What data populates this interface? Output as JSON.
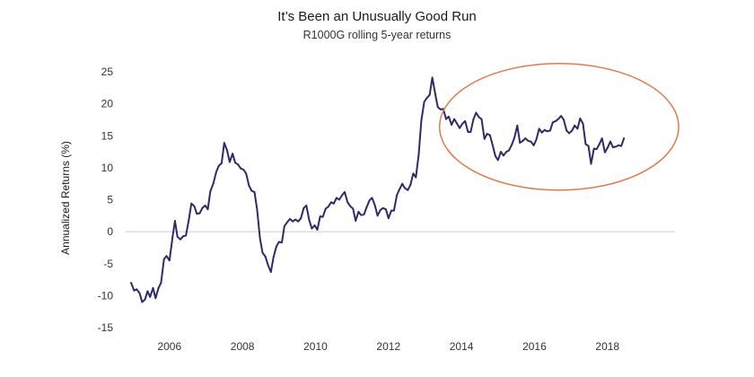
{
  "chart_data": {
    "type": "line",
    "title": "It’s Been an Unusually Good Run",
    "subtitle": "R1000G rolling 5-year returns",
    "xlabel": "",
    "ylabel": "Annualized Returns (%)",
    "xlim": [
      2004.8,
      2019.85
    ],
    "ylim": [
      -15,
      25
    ],
    "x_ticks": [
      {
        "value": 2006,
        "label": "2006"
      },
      {
        "value": 2008,
        "label": "2008"
      },
      {
        "value": 2010,
        "label": "2010"
      },
      {
        "value": 2012,
        "label": "2012"
      },
      {
        "value": 2014,
        "label": "2014"
      },
      {
        "value": 2016,
        "label": "2016"
      },
      {
        "value": 2018,
        "label": "2018"
      }
    ],
    "y_ticks": [
      {
        "value": 25,
        "label": "25"
      },
      {
        "value": 20,
        "label": "20"
      },
      {
        "value": 15,
        "label": "15"
      },
      {
        "value": 10,
        "label": "10"
      },
      {
        "value": 5,
        "label": "5"
      },
      {
        "value": 0,
        "label": "0"
      },
      {
        "value": -5,
        "label": "-5"
      },
      {
        "value": -10,
        "label": "-10"
      },
      {
        "value": -15,
        "label": "-15"
      }
    ],
    "grid": false,
    "zero_line": true,
    "line_color": "#2d2b6b",
    "zero_line_color": "#cccccc",
    "highlight_color": "#e07a4c",
    "highlight": {
      "x_from": 2013.4,
      "x_to": 2019.95,
      "y_from": 6.5,
      "y_to": 26.3
    },
    "series": [
      {
        "points": [
          [
            2004.95,
            -8.0
          ],
          [
            2005.03,
            -9.2
          ],
          [
            2005.1,
            -9.0
          ],
          [
            2005.18,
            -9.6
          ],
          [
            2005.25,
            -11.0
          ],
          [
            2005.33,
            -10.6
          ],
          [
            2005.4,
            -9.3
          ],
          [
            2005.47,
            -10.2
          ],
          [
            2005.55,
            -8.8
          ],
          [
            2005.62,
            -10.4
          ],
          [
            2005.7,
            -8.8
          ],
          [
            2005.77,
            -8.0
          ],
          [
            2005.85,
            -4.3
          ],
          [
            2005.92,
            -3.8
          ],
          [
            2006.0,
            -4.5
          ],
          [
            2006.08,
            -1.0
          ],
          [
            2006.15,
            1.7
          ],
          [
            2006.22,
            -0.8
          ],
          [
            2006.3,
            -1.2
          ],
          [
            2006.38,
            -0.7
          ],
          [
            2006.45,
            -0.6
          ],
          [
            2006.53,
            1.8
          ],
          [
            2006.6,
            4.4
          ],
          [
            2006.68,
            4.0
          ],
          [
            2006.75,
            2.8
          ],
          [
            2006.83,
            2.9
          ],
          [
            2006.9,
            3.7
          ],
          [
            2006.98,
            4.1
          ],
          [
            2007.05,
            3.5
          ],
          [
            2007.12,
            6.3
          ],
          [
            2007.2,
            7.5
          ],
          [
            2007.28,
            9.3
          ],
          [
            2007.35,
            10.3
          ],
          [
            2007.43,
            10.7
          ],
          [
            2007.5,
            13.9
          ],
          [
            2007.58,
            12.7
          ],
          [
            2007.65,
            10.9
          ],
          [
            2007.73,
            12.2
          ],
          [
            2007.8,
            10.8
          ],
          [
            2007.88,
            10.5
          ],
          [
            2007.95,
            9.9
          ],
          [
            2008.03,
            9.7
          ],
          [
            2008.1,
            9.1
          ],
          [
            2008.18,
            7.2
          ],
          [
            2008.25,
            6.4
          ],
          [
            2008.33,
            6.2
          ],
          [
            2008.4,
            3.5
          ],
          [
            2008.48,
            -1.0
          ],
          [
            2008.55,
            -3.3
          ],
          [
            2008.63,
            -3.9
          ],
          [
            2008.7,
            -5.2
          ],
          [
            2008.78,
            -6.3
          ],
          [
            2008.85,
            -4.0
          ],
          [
            2008.93,
            -2.3
          ],
          [
            2009.0,
            -1.6
          ],
          [
            2009.08,
            -1.7
          ],
          [
            2009.15,
            0.9
          ],
          [
            2009.23,
            1.5
          ],
          [
            2009.3,
            2.0
          ],
          [
            2009.38,
            1.6
          ],
          [
            2009.45,
            1.9
          ],
          [
            2009.53,
            1.6
          ],
          [
            2009.6,
            2.1
          ],
          [
            2009.68,
            3.7
          ],
          [
            2009.75,
            4.1
          ],
          [
            2009.83,
            1.8
          ],
          [
            2009.9,
            0.5
          ],
          [
            2009.98,
            1.0
          ],
          [
            2010.05,
            0.3
          ],
          [
            2010.13,
            2.4
          ],
          [
            2010.2,
            2.3
          ],
          [
            2010.28,
            3.6
          ],
          [
            2010.35,
            3.9
          ],
          [
            2010.43,
            4.6
          ],
          [
            2010.5,
            4.4
          ],
          [
            2010.58,
            5.3
          ],
          [
            2010.65,
            5.0
          ],
          [
            2010.73,
            5.7
          ],
          [
            2010.8,
            6.2
          ],
          [
            2010.88,
            4.6
          ],
          [
            2010.95,
            4.0
          ],
          [
            2011.03,
            3.6
          ],
          [
            2011.1,
            1.7
          ],
          [
            2011.18,
            3.1
          ],
          [
            2011.25,
            2.6
          ],
          [
            2011.33,
            2.7
          ],
          [
            2011.4,
            3.8
          ],
          [
            2011.48,
            4.9
          ],
          [
            2011.55,
            5.3
          ],
          [
            2011.63,
            4.1
          ],
          [
            2011.7,
            2.5
          ],
          [
            2011.78,
            3.4
          ],
          [
            2011.85,
            3.7
          ],
          [
            2011.93,
            3.5
          ],
          [
            2012.0,
            2.1
          ],
          [
            2012.08,
            3.3
          ],
          [
            2012.15,
            3.3
          ],
          [
            2012.23,
            5.7
          ],
          [
            2012.3,
            6.6
          ],
          [
            2012.38,
            7.5
          ],
          [
            2012.45,
            6.8
          ],
          [
            2012.53,
            6.5
          ],
          [
            2012.6,
            7.3
          ],
          [
            2012.68,
            9.1
          ],
          [
            2012.75,
            8.5
          ],
          [
            2012.83,
            12.1
          ],
          [
            2012.9,
            17.4
          ],
          [
            2012.98,
            20.3
          ],
          [
            2013.05,
            20.9
          ],
          [
            2013.13,
            21.4
          ],
          [
            2013.2,
            24.1
          ],
          [
            2013.28,
            21.6
          ],
          [
            2013.35,
            19.5
          ],
          [
            2013.43,
            19.1
          ],
          [
            2013.5,
            19.2
          ],
          [
            2013.58,
            17.6
          ],
          [
            2013.65,
            18.0
          ],
          [
            2013.73,
            16.7
          ],
          [
            2013.8,
            17.6
          ],
          [
            2013.88,
            16.9
          ],
          [
            2013.95,
            16.2
          ],
          [
            2014.03,
            16.9
          ],
          [
            2014.1,
            17.3
          ],
          [
            2014.18,
            15.6
          ],
          [
            2014.25,
            15.6
          ],
          [
            2014.33,
            17.6
          ],
          [
            2014.4,
            18.6
          ],
          [
            2014.48,
            17.9
          ],
          [
            2014.55,
            17.6
          ],
          [
            2014.63,
            14.5
          ],
          [
            2014.7,
            15.3
          ],
          [
            2014.78,
            15.1
          ],
          [
            2014.85,
            13.6
          ],
          [
            2014.93,
            11.8
          ],
          [
            2015.0,
            11.2
          ],
          [
            2015.08,
            12.5
          ],
          [
            2015.15,
            11.9
          ],
          [
            2015.23,
            12.5
          ],
          [
            2015.3,
            12.7
          ],
          [
            2015.38,
            13.6
          ],
          [
            2015.45,
            14.7
          ],
          [
            2015.53,
            16.6
          ],
          [
            2015.6,
            13.9
          ],
          [
            2015.68,
            14.2
          ],
          [
            2015.75,
            14.6
          ],
          [
            2015.83,
            14.2
          ],
          [
            2015.9,
            14.1
          ],
          [
            2015.98,
            13.5
          ],
          [
            2016.05,
            14.4
          ],
          [
            2016.13,
            16.1
          ],
          [
            2016.2,
            15.5
          ],
          [
            2016.28,
            15.9
          ],
          [
            2016.35,
            15.7
          ],
          [
            2016.43,
            15.8
          ],
          [
            2016.5,
            17.1
          ],
          [
            2016.58,
            17.3
          ],
          [
            2016.65,
            17.6
          ],
          [
            2016.73,
            18.1
          ],
          [
            2016.8,
            17.5
          ],
          [
            2016.88,
            15.8
          ],
          [
            2016.95,
            15.4
          ],
          [
            2017.03,
            15.8
          ],
          [
            2017.1,
            16.6
          ],
          [
            2017.18,
            16.1
          ],
          [
            2017.25,
            17.7
          ],
          [
            2017.33,
            16.9
          ],
          [
            2017.4,
            13.7
          ],
          [
            2017.48,
            13.4
          ],
          [
            2017.55,
            10.6
          ],
          [
            2017.63,
            13.0
          ],
          [
            2017.7,
            12.9
          ],
          [
            2017.78,
            13.7
          ],
          [
            2017.85,
            14.6
          ],
          [
            2017.93,
            12.4
          ],
          [
            2018.0,
            13.1
          ],
          [
            2018.08,
            14.1
          ],
          [
            2018.15,
            13.2
          ],
          [
            2018.23,
            13.3
          ],
          [
            2018.3,
            13.5
          ],
          [
            2018.38,
            13.4
          ],
          [
            2018.45,
            14.6
          ]
        ]
      }
    ]
  }
}
